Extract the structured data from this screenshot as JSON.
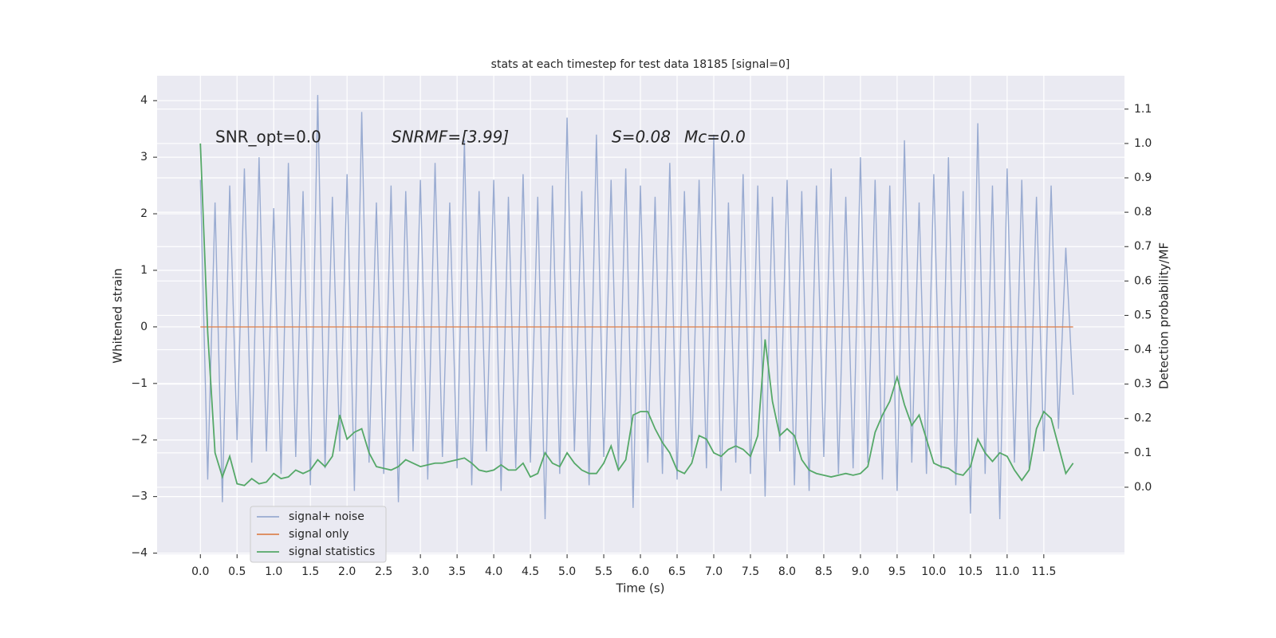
{
  "chart_data": {
    "type": "line",
    "title": "stats at each timestep for test data 18185 [signal=0]",
    "x_label": "Time (s)",
    "y_label": "Whitened strain",
    "y2_label": "Detection probability/MF",
    "annotations": [
      "SNR_opt=0.0",
      "SNRMF=[3.99]",
      "S=0.08",
      "Mc=0.0"
    ],
    "x": [
      0,
      0.1,
      0.2,
      0.3,
      0.4,
      0.5,
      0.6,
      0.7,
      0.8,
      0.9,
      1,
      1.1,
      1.2,
      1.3,
      1.4,
      1.5,
      1.6,
      1.7,
      1.8,
      1.9,
      2,
      2.1,
      2.2,
      2.3,
      2.4,
      2.5,
      2.6,
      2.7,
      2.8,
      2.9,
      3,
      3.1,
      3.2,
      3.3,
      3.4,
      3.5,
      3.6,
      3.7,
      3.8,
      3.9,
      4,
      4.1,
      4.2,
      4.3,
      4.4,
      4.5,
      4.6,
      4.7,
      4.8,
      4.9,
      5,
      5.1,
      5.2,
      5.3,
      5.4,
      5.5,
      5.6,
      5.7,
      5.8,
      5.9,
      6,
      6.1,
      6.2,
      6.3,
      6.4,
      6.5,
      6.6,
      6.7,
      6.8,
      6.9,
      7,
      7.1,
      7.2,
      7.3,
      7.4,
      7.5,
      7.6,
      7.7,
      7.8,
      7.9,
      8,
      8.1,
      8.2,
      8.3,
      8.4,
      8.5,
      8.6,
      8.7,
      8.8,
      8.9,
      9,
      9.1,
      9.2,
      9.3,
      9.4,
      9.5,
      9.6,
      9.7,
      9.8,
      9.9,
      10,
      10.1,
      10.2,
      10.3,
      10.4,
      10.5,
      10.6,
      10.7,
      10.8,
      10.9,
      11,
      11.1,
      11.2,
      11.3,
      11.4,
      11.5,
      11.6,
      11.7,
      11.8,
      11.9
    ],
    "series": [
      {
        "name": "signal+ noise",
        "color": "#99abd1",
        "values": [
          2.6,
          -2.7,
          2.2,
          -3.1,
          2.5,
          -2.0,
          2.8,
          -2.4,
          3.0,
          -2.2,
          2.1,
          -2.6,
          2.9,
          -2.3,
          2.4,
          -2.8,
          4.1,
          -2.5,
          2.3,
          -2.2,
          2.7,
          -2.9,
          3.8,
          -2.4,
          2.2,
          -2.6,
          2.5,
          -3.1,
          2.4,
          -2.2,
          2.6,
          -2.7,
          2.9,
          -2.3,
          2.2,
          -2.5,
          3.3,
          -2.8,
          2.4,
          -2.2,
          2.6,
          -2.9,
          2.3,
          -2.5,
          2.7,
          -2.4,
          2.3,
          -3.4,
          2.5,
          -2.6,
          3.7,
          -2.2,
          2.4,
          -2.8,
          3.4,
          -2.3,
          2.6,
          -2.5,
          2.8,
          -3.2,
          2.5,
          -2.4,
          2.3,
          -2.6,
          2.9,
          -2.7,
          2.4,
          -2.3,
          2.6,
          -2.5,
          3.4,
          -2.9,
          2.2,
          -2.4,
          2.7,
          -2.6,
          2.5,
          -3.0,
          2.3,
          -2.2,
          2.6,
          -2.8,
          2.4,
          -2.9,
          2.5,
          -2.3,
          2.8,
          -2.6,
          2.3,
          -2.5,
          3.0,
          -2.4,
          2.6,
          -2.7,
          2.5,
          -2.9,
          3.3,
          -2.4,
          2.2,
          -2.6,
          2.7,
          -2.5,
          3.0,
          -2.8,
          2.4,
          -3.3,
          3.6,
          -2.6,
          2.5,
          -3.4,
          2.8,
          -2.4,
          2.6,
          -2.5,
          2.3,
          -2.2,
          2.5,
          -1.8,
          1.4,
          -1.2
        ]
      },
      {
        "name": "signal only",
        "color": "#dd8452",
        "values": [
          0,
          0,
          0,
          0,
          0,
          0,
          0,
          0,
          0,
          0,
          0,
          0,
          0,
          0,
          0,
          0,
          0,
          0,
          0,
          0,
          0,
          0,
          0,
          0,
          0,
          0,
          0,
          0,
          0,
          0,
          0,
          0,
          0,
          0,
          0,
          0,
          0,
          0,
          0,
          0,
          0,
          0,
          0,
          0,
          0,
          0,
          0,
          0,
          0,
          0,
          0,
          0,
          0,
          0,
          0,
          0,
          0,
          0,
          0,
          0,
          0,
          0,
          0,
          0,
          0,
          0,
          0,
          0,
          0,
          0,
          0,
          0,
          0,
          0,
          0,
          0,
          0,
          0,
          0,
          0,
          0,
          0,
          0,
          0,
          0,
          0,
          0,
          0,
          0,
          0,
          0,
          0,
          0,
          0,
          0,
          0,
          0,
          0,
          0,
          0,
          0,
          0,
          0,
          0,
          0,
          0,
          0,
          0,
          0,
          0,
          0,
          0,
          0,
          0,
          0,
          0,
          0,
          0,
          0,
          0
        ]
      },
      {
        "name": "signal statistics",
        "color": "#55a868",
        "axis": "y2",
        "values": [
          1.0,
          0.45,
          0.1,
          0.03,
          0.09,
          0.01,
          0.005,
          0.025,
          0.01,
          0.015,
          0.04,
          0.025,
          0.03,
          0.05,
          0.04,
          0.05,
          0.08,
          0.06,
          0.09,
          0.21,
          0.14,
          0.16,
          0.17,
          0.1,
          0.06,
          0.055,
          0.05,
          0.06,
          0.08,
          0.07,
          0.06,
          0.065,
          0.07,
          0.07,
          0.075,
          0.08,
          0.085,
          0.07,
          0.05,
          0.045,
          0.05,
          0.065,
          0.05,
          0.05,
          0.07,
          0.03,
          0.04,
          0.1,
          0.07,
          0.06,
          0.1,
          0.07,
          0.05,
          0.04,
          0.04,
          0.07,
          0.12,
          0.05,
          0.08,
          0.21,
          0.22,
          0.22,
          0.17,
          0.13,
          0.1,
          0.05,
          0.04,
          0.07,
          0.15,
          0.14,
          0.1,
          0.09,
          0.11,
          0.12,
          0.11,
          0.09,
          0.15,
          0.43,
          0.25,
          0.15,
          0.17,
          0.15,
          0.08,
          0.05,
          0.04,
          0.035,
          0.03,
          0.035,
          0.04,
          0.035,
          0.04,
          0.06,
          0.16,
          0.21,
          0.25,
          0.32,
          0.24,
          0.18,
          0.21,
          0.14,
          0.07,
          0.06,
          0.055,
          0.04,
          0.035,
          0.06,
          0.14,
          0.1,
          0.075,
          0.1,
          0.09,
          0.05,
          0.02,
          0.05,
          0.17,
          0.22,
          0.2,
          0.12,
          0.04,
          0.07
        ]
      }
    ],
    "xlim": [
      -0.59,
      12.6
    ],
    "xticks": [
      {
        "value": 0,
        "label": "0.0"
      },
      {
        "value": 0.5,
        "label": "0.5"
      },
      {
        "value": 1,
        "label": "1.0"
      },
      {
        "value": 1.5,
        "label": "1.5"
      },
      {
        "value": 2,
        "label": "2.0"
      },
      {
        "value": 2.5,
        "label": "2.5"
      },
      {
        "value": 3,
        "label": "3.0"
      },
      {
        "value": 3.5,
        "label": "3.5"
      },
      {
        "value": 4,
        "label": "4.0"
      },
      {
        "value": 4.5,
        "label": "4.5"
      },
      {
        "value": 5,
        "label": "5.0"
      },
      {
        "value": 5.5,
        "label": "5.5"
      },
      {
        "value": 6,
        "label": "6.0"
      },
      {
        "value": 6.5,
        "label": "6.5"
      },
      {
        "value": 7,
        "label": "7.0"
      },
      {
        "value": 7.5,
        "label": "7.5"
      },
      {
        "value": 8,
        "label": "8.0"
      },
      {
        "value": 8.5,
        "label": "8.5"
      },
      {
        "value": 9,
        "label": "9.0"
      },
      {
        "value": 9.5,
        "label": "9.5"
      },
      {
        "value": 10,
        "label": "10.0"
      },
      {
        "value": 10.5,
        "label": "10.5"
      },
      {
        "value": 11,
        "label": "11.0"
      },
      {
        "value": 11.5,
        "label": "11.5"
      }
    ],
    "ylim": [
      -4.02,
      4.44
    ],
    "yticks": [
      {
        "value": -4,
        "label": "−4"
      },
      {
        "value": -3,
        "label": "−3"
      },
      {
        "value": -2,
        "label": "−2"
      },
      {
        "value": -1,
        "label": "−1"
      },
      0,
      1,
      2,
      3,
      4
    ],
    "y2lim": [
      -0.195,
      1.197
    ],
    "y2ticks": [
      {
        "value": 0,
        "label": "0.0"
      },
      {
        "value": 0.1,
        "label": "0.1"
      },
      {
        "value": 0.2,
        "label": "0.2"
      },
      {
        "value": 0.3,
        "label": "0.3"
      },
      {
        "value": 0.4,
        "label": "0.4"
      },
      {
        "value": 0.5,
        "label": "0.5"
      },
      {
        "value": 0.6,
        "label": "0.6"
      },
      {
        "value": 0.7,
        "label": "0.7"
      },
      {
        "value": 0.8,
        "label": "0.8"
      },
      {
        "value": 0.9,
        "label": "0.9"
      },
      {
        "value": 1,
        "label": "1.0"
      },
      {
        "value": 1.1,
        "label": "1.1"
      }
    ],
    "grid": true,
    "legend": "lower left"
  }
}
